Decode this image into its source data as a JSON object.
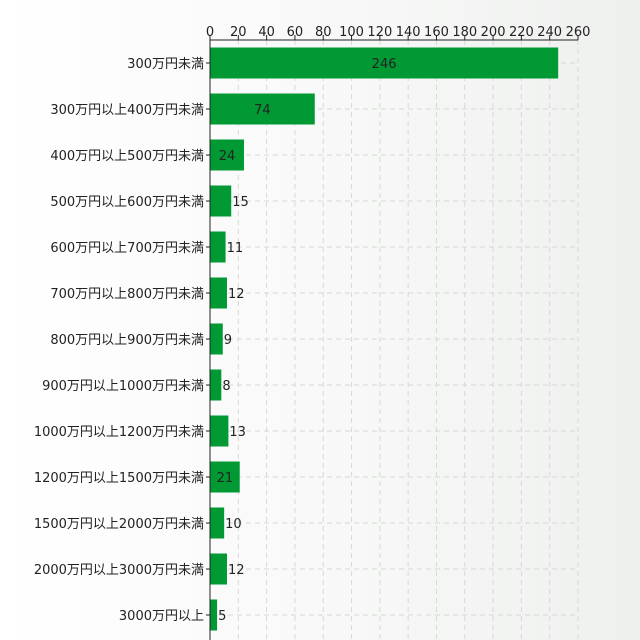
{
  "chart_data": {
    "type": "bar",
    "orientation": "horizontal",
    "categories": [
      "300万円未満",
      "300万円以上400万円未満",
      "400万円以上500万円未満",
      "500万円以上600万円未満",
      "600万円以上700万円未満",
      "700万円以上800万円未満",
      "800万円以上900万円未満",
      "900万円以上1000万円未満",
      "1000万円以上1200万円未満",
      "1200万円以上1500万円未満",
      "1500万円以上2000万円未満",
      "2000万円以上3000万円未満",
      "3000万円以上"
    ],
    "values": [
      246,
      74,
      24,
      15,
      11,
      12,
      9,
      8,
      13,
      21,
      10,
      12,
      5
    ],
    "xlim": [
      0,
      260
    ],
    "x_ticks": [
      0,
      20,
      40,
      60,
      80,
      100,
      120,
      140,
      160,
      180,
      200,
      220,
      240,
      260
    ],
    "x_axis_position": "top",
    "grid": true,
    "bar_color": "#009933",
    "data_labels": true
  }
}
